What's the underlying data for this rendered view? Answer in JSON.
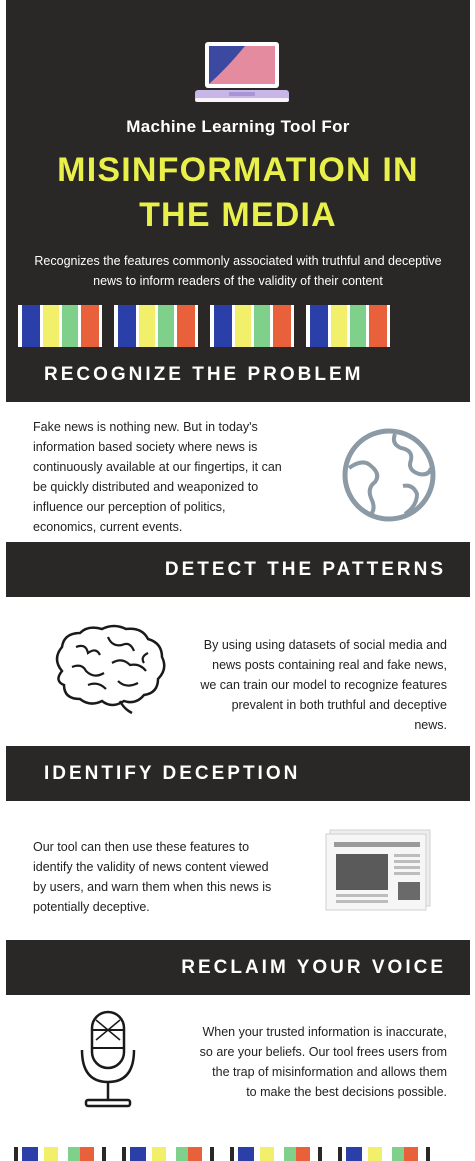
{
  "hero": {
    "subtitle": "Machine Learning Tool For",
    "title_line1": "MISINFORMATION IN",
    "title_line2": "THE MEDIA",
    "tagline_line1": "Recognizes the features commonly associated with truthful and deceptive",
    "tagline_line2": "news to inform readers of the validity of their content"
  },
  "colors": {
    "dark": "#2a2727",
    "accent_yellow": "#e9f04a",
    "stripe_blue": "#2a40a8",
    "stripe_yellow": "#f2f06a",
    "stripe_green": "#7fd08a",
    "stripe_orange": "#e8613a",
    "laptop_pink": "#e58ba0",
    "laptop_blue": "#3b4aa0",
    "laptop_lavender": "#c9b6e8"
  },
  "sections": [
    {
      "heading": "RECOGNIZE THE PROBLEM",
      "lines": [
        "Fake news is nothing new. But in today's",
        "information based society where news is",
        "continuously available at our fingertips, it can",
        "be quickly distributed and weaponized to",
        "influence our perception of politics,",
        "economics, current events."
      ],
      "icon": "globe-icon"
    },
    {
      "heading": "DETECT THE PATTERNS",
      "lines": [
        "By using using datasets of social media and",
        "news posts containing real and fake news,",
        "we can train our model to recognize features",
        "prevalent in both truthful and deceptive",
        "news."
      ],
      "icon": "brain-icon"
    },
    {
      "heading": "IDENTIFY DECEPTION",
      "lines": [
        "Our tool can then use these features to",
        "identify the validity of news content viewed",
        "by users, and warn them when this news is",
        "potentially deceptive."
      ],
      "icon": "newspaper-icon"
    },
    {
      "heading": "RECLAIM YOUR VOICE",
      "lines": [
        "When your trusted information is inaccurate,",
        "so are your beliefs.  Our tool frees users from",
        "the trap of misinformation and allows them",
        "to make the best decisions possible."
      ],
      "icon": "microphone-icon"
    }
  ]
}
